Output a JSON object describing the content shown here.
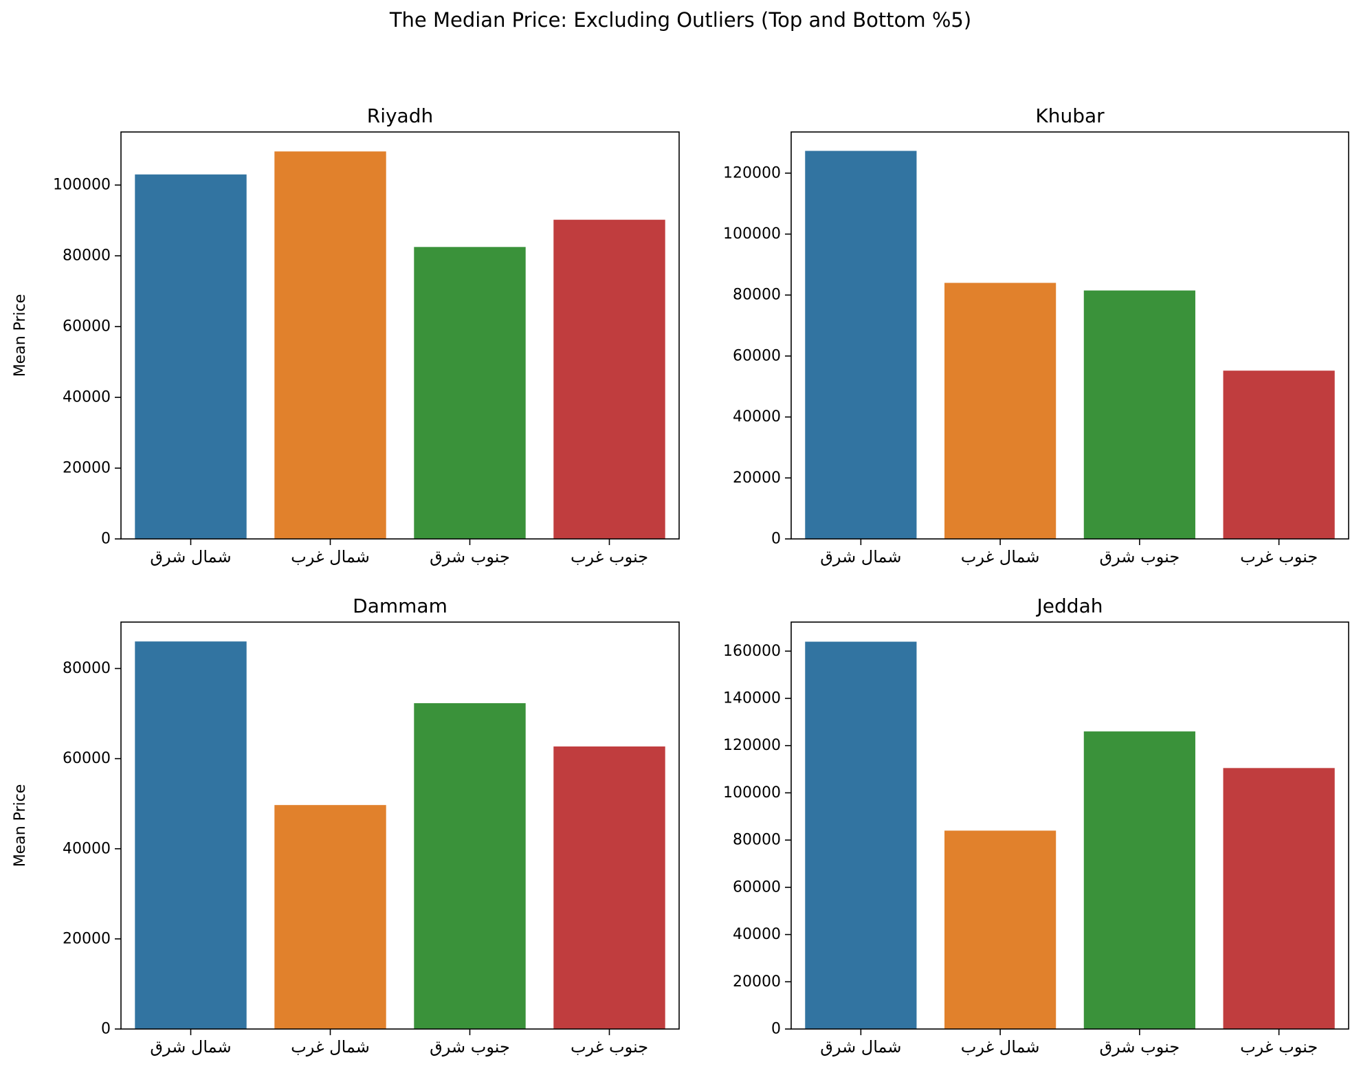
{
  "title": "The Median Price: Excluding Outliers (Top and Bottom %5)",
  "colors": [
    "#3274a1",
    "#e1812c",
    "#3a923a",
    "#c03d3e"
  ],
  "chart_data": [
    {
      "type": "bar",
      "title": "Riyadh",
      "xlabel": "",
      "ylabel": "Mean Price",
      "categories": [
        "شمال شرق",
        "شمال غرب",
        "جنوب شرق",
        "جنوب غرب"
      ],
      "values": [
        103000,
        109500,
        82500,
        90200
      ],
      "ylim": [
        0,
        115000
      ],
      "yticks": [
        0,
        20000,
        40000,
        60000,
        80000,
        100000
      ],
      "grid": false
    },
    {
      "type": "bar",
      "title": "Khubar",
      "xlabel": "",
      "ylabel": "",
      "categories": [
        "شمال شرق",
        "شمال غرب",
        "جنوب شرق",
        "جنوب غرب"
      ],
      "values": [
        127300,
        84000,
        81500,
        55200
      ],
      "ylim": [
        0,
        133500
      ],
      "yticks": [
        0,
        20000,
        40000,
        60000,
        80000,
        100000,
        120000
      ],
      "grid": false
    },
    {
      "type": "bar",
      "title": "Dammam",
      "xlabel": "",
      "ylabel": "Mean Price",
      "categories": [
        "شمال شرق",
        "شمال غرب",
        "جنوب شرق",
        "جنوب غرب"
      ],
      "values": [
        86000,
        49700,
        72300,
        62700
      ],
      "ylim": [
        0,
        90300
      ],
      "yticks": [
        0,
        20000,
        40000,
        60000,
        80000
      ],
      "grid": false
    },
    {
      "type": "bar",
      "title": "Jeddah",
      "xlabel": "",
      "ylabel": "",
      "categories": [
        "شمال شرق",
        "شمال غرب",
        "جنوب شرق",
        "جنوب غرب"
      ],
      "values": [
        164000,
        84000,
        126000,
        110500
      ],
      "ylim": [
        0,
        172300
      ],
      "yticks": [
        0,
        20000,
        40000,
        60000,
        80000,
        100000,
        120000,
        140000,
        160000
      ],
      "grid": false
    }
  ]
}
